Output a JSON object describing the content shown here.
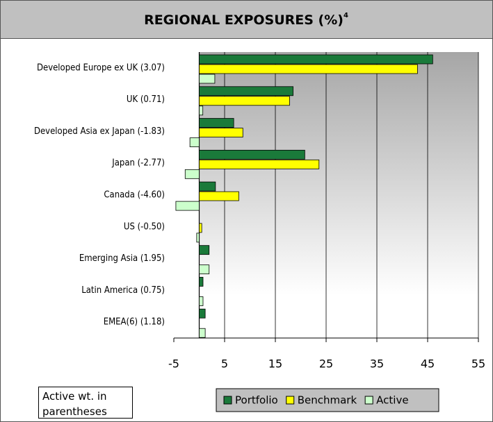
{
  "chart_data": {
    "type": "bar",
    "orientation": "horizontal",
    "title": "REGIONAL EXPOSURES (%)",
    "title_superscript": "4",
    "note": "Active wt. in parentheses",
    "categories": [
      "Developed Europe ex UK (3.07)",
      "UK (0.71)",
      "Developed Asia ex Japan (-1.83)",
      "Japan (-2.77)",
      "Canada (-4.60)",
      "US (-0.50)",
      "Emerging Asia (1.95)",
      "Latin America (0.75)",
      "EMEA(6) (1.18)"
    ],
    "series": [
      {
        "name": "Portfolio",
        "color": "#1a7a3a",
        "values": [
          46,
          18.5,
          6.8,
          20.8,
          3.2,
          0,
          1.95,
          0.75,
          1.18
        ]
      },
      {
        "name": "Benchmark",
        "color": "#ffff00",
        "values": [
          43,
          17.8,
          8.6,
          23.6,
          7.8,
          0.5,
          0,
          0,
          0
        ]
      },
      {
        "name": "Active",
        "color": "#ccffcc",
        "values": [
          3.07,
          0.71,
          -1.83,
          -2.77,
          -4.6,
          -0.5,
          1.95,
          0.75,
          1.18
        ]
      }
    ],
    "xlim": [
      -5,
      55
    ],
    "xticks": [
      -5,
      5,
      15,
      25,
      35,
      45,
      55
    ],
    "grid": true
  }
}
